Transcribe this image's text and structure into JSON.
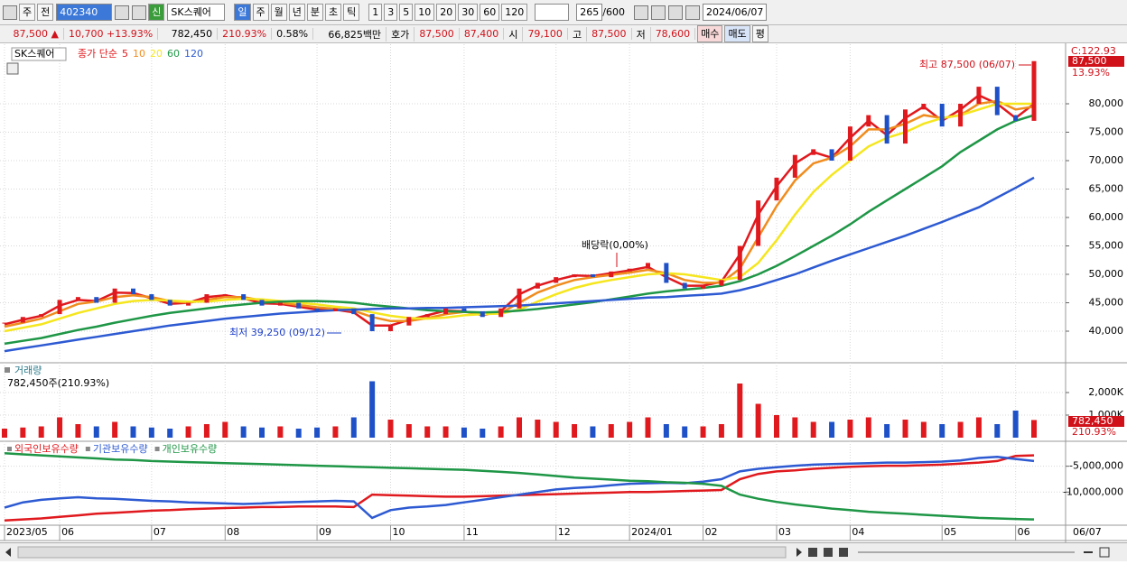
{
  "toolbar": {
    "market": "주",
    "prev": "전",
    "code": "402340",
    "badge": "신",
    "name": "SK스퀘어",
    "periods": [
      "일",
      "주",
      "월",
      "년",
      "분",
      "초",
      "틱"
    ],
    "intervals": [
      "1",
      "3",
      "5",
      "10",
      "20",
      "30",
      "60",
      "120"
    ],
    "count": "265",
    "total": "/600",
    "date": "2024/06/07"
  },
  "info": {
    "price": "87,500 ▲",
    "change": "10,700 +13.93%",
    "volume": "782,450",
    "volume_ratio": "210.93%",
    "turnover": "0.58%",
    "amount": "66,825백만",
    "quote_label": "호가",
    "ask": "87,500",
    "bid": "87,400",
    "open_label": "시",
    "open": "79,100",
    "high_label": "고",
    "high": "87,500",
    "low_label": "저",
    "low": "78,600",
    "buy": "매수",
    "sell": "매도",
    "avg": "평"
  },
  "chart_data": [
    {
      "type": "candle",
      "title": "SK스퀘어",
      "legend_prefix": "종가 단순",
      "c_label": "C:122.93",
      "last_label": "87,500",
      "change_label": "13.93%",
      "high_label": "최고 87,500 (06/07)",
      "low_label": "최저 39,250 (09/12)",
      "event_label": "배당락(0,00%)",
      "grid": true,
      "ylim": [
        35000,
        90000
      ],
      "yticks": [
        {
          "value": 40000,
          "label": "40,000"
        },
        {
          "value": 45000,
          "label": "45,000"
        },
        {
          "value": 50000,
          "label": "50,000"
        },
        {
          "value": 55000,
          "label": "55,000"
        },
        {
          "value": 60000,
          "label": "60,000"
        },
        {
          "value": 65000,
          "label": "65,000"
        },
        {
          "value": 70000,
          "label": "70,000"
        },
        {
          "value": 75000,
          "label": "75,000"
        },
        {
          "value": 80000,
          "label": "80,000"
        }
      ],
      "values": [
        41500,
        42500,
        43000,
        45500,
        46000,
        45000,
        47500,
        46500,
        45500,
        44500,
        45000,
        46500,
        46500,
        45500,
        44500,
        45000,
        44000,
        43500,
        44000,
        43000,
        40000,
        41000,
        42500,
        43000,
        44000,
        43500,
        42500,
        44000,
        47500,
        48500,
        49500,
        50000,
        49500,
        50500,
        51000,
        52000,
        48500,
        47500,
        48000,
        49000,
        55000,
        63000,
        67000,
        71000,
        72000,
        70000,
        76000,
        78000,
        73000,
        79000,
        80000,
        76000,
        80000,
        83000,
        78000,
        77000,
        87500
      ],
      "series": [
        {
          "name": "5",
          "color": "#e0191e",
          "values": [
            41200,
            42000,
            42700,
            44500,
            45500,
            45300,
            46800,
            46700,
            45800,
            44800,
            45000,
            46000,
            46300,
            45800,
            44900,
            44800,
            44300,
            43800,
            43800,
            43300,
            41000,
            41000,
            42000,
            42800,
            43600,
            43500,
            42800,
            43500,
            46500,
            48000,
            49000,
            49800,
            49700,
            50200,
            50700,
            51300,
            49500,
            48000,
            48000,
            48700,
            53500,
            60500,
            65500,
            69500,
            71500,
            70500,
            74000,
            77000,
            74500,
            77500,
            79500,
            77000,
            79000,
            81500,
            80000,
            77500,
            80000
          ]
        },
        {
          "name": "10",
          "color": "#f08c1e",
          "values": [
            40800,
            41500,
            42200,
            43500,
            44800,
            45200,
            46000,
            46300,
            46000,
            45300,
            45000,
            45500,
            46000,
            46000,
            45400,
            45000,
            44600,
            44200,
            43900,
            43600,
            42500,
            41800,
            41800,
            42300,
            43000,
            43400,
            43100,
            43200,
            45000,
            46800,
            48000,
            49000,
            49500,
            49900,
            50300,
            50800,
            50200,
            49000,
            48500,
            48500,
            51000,
            56500,
            62000,
            66500,
            69500,
            70500,
            72500,
            75500,
            75500,
            76500,
            78000,
            77500,
            78000,
            80000,
            80500,
            79000,
            79500
          ]
        },
        {
          "name": "20",
          "color": "#f5e61e",
          "values": [
            40000,
            40600,
            41200,
            42200,
            43200,
            44000,
            44800,
            45300,
            45500,
            45400,
            45200,
            45200,
            45500,
            45700,
            45600,
            45300,
            45000,
            44700,
            44300,
            44000,
            43300,
            42700,
            42300,
            42200,
            42400,
            42800,
            43000,
            43100,
            43800,
            45200,
            46500,
            47600,
            48400,
            49000,
            49500,
            50000,
            50200,
            50000,
            49500,
            49000,
            49500,
            52000,
            56000,
            60500,
            64500,
            67500,
            70000,
            72500,
            74000,
            75000,
            76500,
            77500,
            78000,
            79000,
            80000,
            80000,
            80000
          ]
        },
        {
          "name": "60",
          "color": "#1e9646",
          "values": [
            37800,
            38300,
            38800,
            39500,
            40200,
            40800,
            41500,
            42100,
            42700,
            43200,
            43600,
            44000,
            44400,
            44700,
            45000,
            45200,
            45300,
            45300,
            45200,
            45000,
            44600,
            44300,
            44000,
            43700,
            43500,
            43400,
            43300,
            43400,
            43600,
            43900,
            44300,
            44700,
            45100,
            45600,
            46100,
            46600,
            47000,
            47300,
            47600,
            48000,
            48800,
            50000,
            51500,
            53200,
            55000,
            56800,
            58800,
            61000,
            63000,
            65000,
            67000,
            69000,
            71500,
            73500,
            75500,
            77000,
            78000
          ]
        },
        {
          "name": "120",
          "color": "#2d5ad2",
          "values": [
            36500,
            37000,
            37500,
            38000,
            38500,
            39000,
            39500,
            40000,
            40500,
            41000,
            41400,
            41800,
            42200,
            42500,
            42800,
            43100,
            43300,
            43500,
            43700,
            43800,
            43900,
            44000,
            44000,
            44100,
            44100,
            44200,
            44300,
            44400,
            44500,
            44700,
            44900,
            45100,
            45300,
            45500,
            45700,
            45900,
            46000,
            46200,
            46400,
            46600,
            47200,
            48000,
            49000,
            50000,
            51200,
            52400,
            53500,
            54600,
            55700,
            56800,
            58000,
            59200,
            60500,
            61800,
            63500,
            65200,
            67000
          ]
        }
      ]
    },
    {
      "type": "bar",
      "title": "거래량",
      "subtitle": "782,450주(210.93%)",
      "last_label": "782,450",
      "change_label": "210.93%",
      "grid": true,
      "ylim": [
        0,
        3200
      ],
      "yticks": [
        {
          "value": 1000,
          "label": "1,000K"
        },
        {
          "value": 2000,
          "label": "2,000K"
        }
      ],
      "values": [
        400,
        450,
        500,
        900,
        600,
        500,
        700,
        500,
        450,
        400,
        500,
        600,
        700,
        500,
        450,
        500,
        400,
        450,
        500,
        900,
        2500,
        800,
        600,
        500,
        500,
        450,
        400,
        500,
        900,
        800,
        700,
        600,
        500,
        600,
        700,
        900,
        600,
        500,
        500,
        600,
        2400,
        1500,
        1000,
        900,
        700,
        700,
        800,
        900,
        600,
        800,
        700,
        600,
        700,
        900,
        600,
        1200,
        782.45
      ]
    },
    {
      "type": "line",
      "grid": true,
      "x_end_label": "06/07",
      "categories": [
        "2023/05",
        null,
        null,
        "06",
        null,
        null,
        null,
        null,
        "07",
        null,
        null,
        null,
        "08",
        null,
        null,
        null,
        null,
        "09",
        null,
        null,
        null,
        "10",
        null,
        null,
        null,
        "11",
        null,
        null,
        null,
        null,
        "12",
        null,
        null,
        null,
        "2024/01",
        null,
        null,
        null,
        "02",
        null,
        null,
        null,
        "03",
        null,
        null,
        null,
        "04",
        null,
        null,
        null,
        null,
        "05",
        null,
        null,
        null,
        "06",
        null
      ],
      "ylim": [
        -16200000,
        -700000
      ],
      "yticks": [
        {
          "value": -5000000,
          "label": "-5,000,000"
        },
        {
          "value": -10000000,
          "label": "-10,000,000"
        }
      ],
      "series": [
        {
          "name": "외국인보유수량",
          "color": "#e0191e",
          "values": [
            -15500000,
            -15300000,
            -15100000,
            -14800000,
            -14500000,
            -14200000,
            -14000000,
            -13800000,
            -13600000,
            -13500000,
            -13300000,
            -13200000,
            -13100000,
            -13000000,
            -12900000,
            -12900000,
            -12800000,
            -12800000,
            -12800000,
            -12900000,
            -10500000,
            -10600000,
            -10700000,
            -10800000,
            -10900000,
            -10900000,
            -10800000,
            -10700000,
            -10600000,
            -10500000,
            -10400000,
            -10300000,
            -10200000,
            -10100000,
            -10000000,
            -10000000,
            -9900000,
            -9800000,
            -9700000,
            -9600000,
            -7500000,
            -6500000,
            -6000000,
            -5800000,
            -5500000,
            -5300000,
            -5100000,
            -5000000,
            -4900000,
            -4900000,
            -4800000,
            -4700000,
            -4500000,
            -4300000,
            -4000000,
            -3000000,
            -2900000
          ]
        },
        {
          "name": "기관보유수량",
          "color": "#2d5ad2",
          "values": [
            -13000000,
            -12000000,
            -11500000,
            -11200000,
            -11000000,
            -11200000,
            -11300000,
            -11500000,
            -11700000,
            -11800000,
            -12000000,
            -12100000,
            -12200000,
            -12300000,
            -12200000,
            -12000000,
            -11900000,
            -11800000,
            -11700000,
            -11800000,
            -15000000,
            -13500000,
            -13000000,
            -12800000,
            -12500000,
            -12000000,
            -11500000,
            -11000000,
            -10500000,
            -10000000,
            -9500000,
            -9200000,
            -9000000,
            -8700000,
            -8400000,
            -8300000,
            -8200000,
            -8300000,
            -8000000,
            -7500000,
            -6000000,
            -5500000,
            -5200000,
            -4900000,
            -4700000,
            -4600000,
            -4500000,
            -4400000,
            -4300000,
            -4300000,
            -4200000,
            -4100000,
            -3900000,
            -3400000,
            -3200000,
            -3600000,
            -4000000
          ]
        },
        {
          "name": "개인보유수량",
          "color": "#1e9646",
          "values": [
            -2500000,
            -2700000,
            -2900000,
            -3100000,
            -3300000,
            -3500000,
            -3700000,
            -3800000,
            -4000000,
            -4100000,
            -4200000,
            -4300000,
            -4400000,
            -4500000,
            -4600000,
            -4700000,
            -4800000,
            -4900000,
            -5000000,
            -5100000,
            -5200000,
            -5300000,
            -5400000,
            -5500000,
            -5600000,
            -5700000,
            -5900000,
            -6100000,
            -6300000,
            -6600000,
            -6900000,
            -7200000,
            -7400000,
            -7600000,
            -7800000,
            -7900000,
            -8100000,
            -8200000,
            -8400000,
            -8800000,
            -10500000,
            -11300000,
            -11900000,
            -12400000,
            -12800000,
            -13200000,
            -13500000,
            -13800000,
            -14000000,
            -14200000,
            -14400000,
            -14600000,
            -14800000,
            -15000000,
            -15100000,
            -15200000,
            -15300000
          ]
        }
      ]
    }
  ]
}
